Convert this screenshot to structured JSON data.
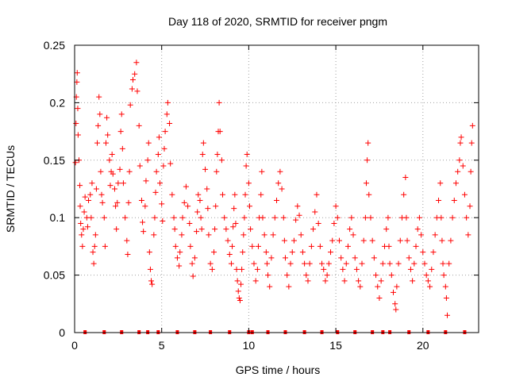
{
  "chart_data": {
    "type": "scatter",
    "title": "Day 118 of 2020, SRMTID for receiver pngm",
    "xlabel": "GPS time / hours",
    "ylabel": "SRMTID / TECUs",
    "xlim": [
      0,
      23.2
    ],
    "ylim": [
      0,
      0.25
    ],
    "xticks": [
      0,
      5,
      10,
      15,
      20
    ],
    "xtick_labels": [
      "0",
      "5",
      "10",
      "15",
      "20"
    ],
    "yticks": [
      0,
      0.05,
      0.1,
      0.15,
      0.2,
      0.25
    ],
    "ytick_labels": [
      "0",
      "0.05",
      "0.1",
      "0.15",
      "0.2",
      "0.25"
    ],
    "grid": true,
    "marker": "+",
    "color": "#ff0000",
    "zero_markers_x": [
      0.6,
      1.7,
      2.7,
      3.7,
      4.2,
      4.8,
      5.9,
      6.9,
      7.8,
      8.9,
      10.0,
      10.2,
      11.1,
      12.1,
      13.2,
      14.2,
      15.1,
      16.1,
      17.1,
      17.7,
      18.1,
      19.2,
      20.3,
      21.3,
      22.4
    ],
    "series": [
      {
        "name": "SRMTID",
        "points": [
          [
            0.05,
            0.148
          ],
          [
            0.08,
            0.182
          ],
          [
            0.1,
            0.205
          ],
          [
            0.13,
            0.218
          ],
          [
            0.15,
            0.226
          ],
          [
            0.18,
            0.195
          ],
          [
            0.2,
            0.172
          ],
          [
            0.25,
            0.15
          ],
          [
            0.3,
            0.128
          ],
          [
            0.32,
            0.11
          ],
          [
            0.35,
            0.095
          ],
          [
            0.4,
            0.085
          ],
          [
            0.45,
            0.075
          ],
          [
            0.5,
            0.09
          ],
          [
            0.55,
            0.105
          ],
          [
            0.6,
            0.118
          ],
          [
            0.7,
            0.1
          ],
          [
            0.75,
            0.092
          ],
          [
            0.8,
            0.115
          ],
          [
            0.9,
            0.12
          ],
          [
            0.95,
            0.1
          ],
          [
            1.0,
            0.13
          ],
          [
            1.05,
            0.07
          ],
          [
            1.1,
            0.06
          ],
          [
            1.15,
            0.075
          ],
          [
            1.2,
            0.085
          ],
          [
            1.25,
            0.125
          ],
          [
            1.3,
            0.165
          ],
          [
            1.35,
            0.18
          ],
          [
            1.4,
            0.205
          ],
          [
            1.45,
            0.19
          ],
          [
            1.5,
            0.14
          ],
          [
            1.55,
            0.12
          ],
          [
            1.6,
            0.113
          ],
          [
            1.7,
            0.1
          ],
          [
            1.75,
            0.075
          ],
          [
            1.8,
            0.165
          ],
          [
            1.85,
            0.187
          ],
          [
            1.9,
            0.172
          ],
          [
            2.0,
            0.15
          ],
          [
            2.05,
            0.128
          ],
          [
            2.1,
            0.14
          ],
          [
            2.15,
            0.155
          ],
          [
            2.2,
            0.138
          ],
          [
            2.3,
            0.125
          ],
          [
            2.35,
            0.11
          ],
          [
            2.4,
            0.09
          ],
          [
            2.45,
            0.113
          ],
          [
            2.5,
            0.13
          ],
          [
            2.6,
            0.142
          ],
          [
            2.65,
            0.175
          ],
          [
            2.7,
            0.19
          ],
          [
            2.75,
            0.16
          ],
          [
            2.8,
            0.13
          ],
          [
            2.9,
            0.1
          ],
          [
            3.0,
            0.08
          ],
          [
            3.05,
            0.068
          ],
          [
            3.1,
            0.113
          ],
          [
            3.15,
            0.14
          ],
          [
            3.2,
            0.198
          ],
          [
            3.3,
            0.212
          ],
          [
            3.35,
            0.22
          ],
          [
            3.45,
            0.225
          ],
          [
            3.55,
            0.235
          ],
          [
            3.6,
            0.21
          ],
          [
            3.7,
            0.18
          ],
          [
            3.75,
            0.145
          ],
          [
            3.85,
            0.115
          ],
          [
            3.9,
            0.096
          ],
          [
            3.95,
            0.088
          ],
          [
            4.05,
            0.11
          ],
          [
            4.1,
            0.132
          ],
          [
            4.2,
            0.15
          ],
          [
            4.25,
            0.165
          ],
          [
            4.3,
            0.07
          ],
          [
            4.35,
            0.055
          ],
          [
            4.4,
            0.045
          ],
          [
            4.45,
            0.042
          ],
          [
            4.55,
            0.085
          ],
          [
            4.6,
            0.1
          ],
          [
            4.65,
            0.122
          ],
          [
            4.7,
            0.14
          ],
          [
            4.8,
            0.155
          ],
          [
            4.85,
            0.17
          ],
          [
            4.9,
            0.13
          ],
          [
            5.0,
            0.112
          ],
          [
            5.05,
            0.097
          ],
          [
            5.1,
            0.145
          ],
          [
            5.15,
            0.16
          ],
          [
            5.2,
            0.175
          ],
          [
            5.3,
            0.19
          ],
          [
            5.35,
            0.2
          ],
          [
            5.45,
            0.182
          ],
          [
            5.5,
            0.147
          ],
          [
            5.6,
            0.12
          ],
          [
            5.7,
            0.1
          ],
          [
            5.75,
            0.09
          ],
          [
            5.8,
            0.075
          ],
          [
            5.9,
            0.065
          ],
          [
            6.0,
            0.058
          ],
          [
            6.05,
            0.07
          ],
          [
            6.15,
            0.085
          ],
          [
            6.2,
            0.1
          ],
          [
            6.3,
            0.113
          ],
          [
            6.4,
            0.127
          ],
          [
            6.5,
            0.11
          ],
          [
            6.6,
            0.095
          ],
          [
            6.65,
            0.075
          ],
          [
            6.75,
            0.06
          ],
          [
            6.8,
            0.049
          ],
          [
            6.9,
            0.065
          ],
          [
            7.0,
            0.088
          ],
          [
            7.05,
            0.105
          ],
          [
            7.1,
            0.12
          ],
          [
            7.2,
            0.115
          ],
          [
            7.25,
            0.1
          ],
          [
            7.3,
            0.09
          ],
          [
            7.35,
            0.155
          ],
          [
            7.4,
            0.165
          ],
          [
            7.5,
            0.142
          ],
          [
            7.6,
            0.125
          ],
          [
            7.65,
            0.108
          ],
          [
            7.7,
            0.085
          ],
          [
            7.8,
            0.06
          ],
          [
            7.9,
            0.055
          ],
          [
            8.0,
            0.07
          ],
          [
            8.05,
            0.09
          ],
          [
            8.1,
            0.11
          ],
          [
            8.15,
            0.14
          ],
          [
            8.2,
            0.155
          ],
          [
            8.25,
            0.175
          ],
          [
            8.3,
            0.2
          ],
          [
            8.35,
            0.175
          ],
          [
            8.45,
            0.15
          ],
          [
            8.5,
            0.12
          ],
          [
            8.6,
            0.1
          ],
          [
            8.7,
            0.09
          ],
          [
            8.8,
            0.08
          ],
          [
            8.9,
            0.068
          ],
          [
            9.0,
            0.06
          ],
          [
            9.05,
            0.075
          ],
          [
            9.1,
            0.092
          ],
          [
            9.15,
            0.108
          ],
          [
            9.2,
            0.12
          ],
          [
            9.25,
            0.095
          ],
          [
            9.3,
            0.055
          ],
          [
            9.35,
            0.045
          ],
          [
            9.4,
            0.036
          ],
          [
            9.45,
            0.03
          ],
          [
            9.5,
            0.028
          ],
          [
            9.55,
            0.042
          ],
          [
            9.6,
            0.055
          ],
          [
            9.65,
            0.07
          ],
          [
            9.7,
            0.085
          ],
          [
            9.75,
            0.1
          ],
          [
            9.8,
            0.12
          ],
          [
            9.85,
            0.145
          ],
          [
            9.9,
            0.155
          ],
          [
            10.0,
            0.13
          ],
          [
            10.05,
            0.11
          ],
          [
            10.1,
            0.09
          ],
          [
            10.2,
            0.075
          ],
          [
            10.3,
            0.06
          ],
          [
            10.4,
            0.045
          ],
          [
            10.5,
            0.055
          ],
          [
            10.55,
            0.075
          ],
          [
            10.6,
            0.1
          ],
          [
            10.7,
            0.12
          ],
          [
            10.75,
            0.14
          ],
          [
            10.8,
            0.1
          ],
          [
            10.9,
            0.085
          ],
          [
            11.0,
            0.07
          ],
          [
            11.05,
            0.06
          ],
          [
            11.1,
            0.05
          ],
          [
            11.2,
            0.04
          ],
          [
            11.3,
            0.065
          ],
          [
            11.4,
            0.085
          ],
          [
            11.5,
            0.1
          ],
          [
            11.6,
            0.115
          ],
          [
            11.7,
            0.13
          ],
          [
            11.8,
            0.14
          ],
          [
            11.9,
            0.125
          ],
          [
            12.0,
            0.1
          ],
          [
            12.05,
            0.08
          ],
          [
            12.1,
            0.065
          ],
          [
            12.2,
            0.05
          ],
          [
            12.3,
            0.04
          ],
          [
            12.4,
            0.06
          ],
          [
            12.5,
            0.07
          ],
          [
            12.6,
            0.08
          ],
          [
            12.7,
            0.098
          ],
          [
            12.8,
            0.11
          ],
          [
            12.9,
            0.102
          ],
          [
            13.0,
            0.085
          ],
          [
            13.1,
            0.07
          ],
          [
            13.2,
            0.06
          ],
          [
            13.3,
            0.05
          ],
          [
            13.4,
            0.045
          ],
          [
            13.5,
            0.06
          ],
          [
            13.6,
            0.075
          ],
          [
            13.7,
            0.09
          ],
          [
            13.8,
            0.105
          ],
          [
            13.9,
            0.12
          ],
          [
            14.0,
            0.095
          ],
          [
            14.1,
            0.075
          ],
          [
            14.2,
            0.06
          ],
          [
            14.3,
            0.055
          ],
          [
            14.4,
            0.045
          ],
          [
            14.5,
            0.05
          ],
          [
            14.6,
            0.06
          ],
          [
            14.7,
            0.07
          ],
          [
            14.8,
            0.08
          ],
          [
            14.9,
            0.095
          ],
          [
            15.0,
            0.11
          ],
          [
            15.1,
            0.1
          ],
          [
            15.2,
            0.08
          ],
          [
            15.3,
            0.065
          ],
          [
            15.4,
            0.055
          ],
          [
            15.5,
            0.045
          ],
          [
            15.6,
            0.06
          ],
          [
            15.7,
            0.075
          ],
          [
            15.8,
            0.09
          ],
          [
            15.9,
            0.1
          ],
          [
            16.0,
            0.085
          ],
          [
            16.1,
            0.065
          ],
          [
            16.2,
            0.055
          ],
          [
            16.3,
            0.045
          ],
          [
            16.4,
            0.04
          ],
          [
            16.5,
            0.06
          ],
          [
            16.6,
            0.08
          ],
          [
            16.7,
            0.1
          ],
          [
            16.75,
            0.13
          ],
          [
            16.8,
            0.15
          ],
          [
            16.85,
            0.165
          ],
          [
            16.9,
            0.12
          ],
          [
            17.0,
            0.1
          ],
          [
            17.1,
            0.08
          ],
          [
            17.2,
            0.065
          ],
          [
            17.3,
            0.05
          ],
          [
            17.4,
            0.04
          ],
          [
            17.5,
            0.03
          ],
          [
            17.6,
            0.045
          ],
          [
            17.7,
            0.06
          ],
          [
            17.8,
            0.075
          ],
          [
            17.9,
            0.09
          ],
          [
            18.0,
            0.1
          ],
          [
            18.05,
            0.075
          ],
          [
            18.1,
            0.06
          ],
          [
            18.2,
            0.05
          ],
          [
            18.3,
            0.035
          ],
          [
            18.4,
            0.025
          ],
          [
            18.45,
            0.02
          ],
          [
            18.5,
            0.04
          ],
          [
            18.6,
            0.06
          ],
          [
            18.7,
            0.08
          ],
          [
            18.8,
            0.1
          ],
          [
            18.9,
            0.12
          ],
          [
            19.0,
            0.135
          ],
          [
            19.05,
            0.1
          ],
          [
            19.1,
            0.08
          ],
          [
            19.2,
            0.065
          ],
          [
            19.3,
            0.055
          ],
          [
            19.4,
            0.045
          ],
          [
            19.5,
            0.06
          ],
          [
            19.6,
            0.075
          ],
          [
            19.7,
            0.09
          ],
          [
            19.8,
            0.1
          ],
          [
            19.9,
            0.085
          ],
          [
            20.0,
            0.07
          ],
          [
            20.1,
            0.06
          ],
          [
            20.2,
            0.05
          ],
          [
            20.3,
            0.045
          ],
          [
            20.4,
            0.04
          ],
          [
            20.5,
            0.055
          ],
          [
            20.6,
            0.07
          ],
          [
            20.7,
            0.085
          ],
          [
            20.8,
            0.1
          ],
          [
            20.9,
            0.115
          ],
          [
            21.0,
            0.13
          ],
          [
            21.05,
            0.1
          ],
          [
            21.1,
            0.08
          ],
          [
            21.15,
            0.06
          ],
          [
            21.2,
            0.05
          ],
          [
            21.3,
            0.04
          ],
          [
            21.35,
            0.03
          ],
          [
            21.4,
            0.015
          ],
          [
            21.5,
            0.06
          ],
          [
            21.6,
            0.08
          ],
          [
            21.7,
            0.1
          ],
          [
            21.8,
            0.115
          ],
          [
            21.9,
            0.13
          ],
          [
            22.0,
            0.14
          ],
          [
            22.1,
            0.15
          ],
          [
            22.15,
            0.165
          ],
          [
            22.2,
            0.17
          ],
          [
            22.3,
            0.145
          ],
          [
            22.4,
            0.12
          ],
          [
            22.5,
            0.1
          ],
          [
            22.6,
            0.085
          ],
          [
            22.7,
            0.11
          ],
          [
            22.75,
            0.14
          ],
          [
            22.8,
            0.165
          ],
          [
            22.85,
            0.18
          ]
        ]
      }
    ]
  }
}
